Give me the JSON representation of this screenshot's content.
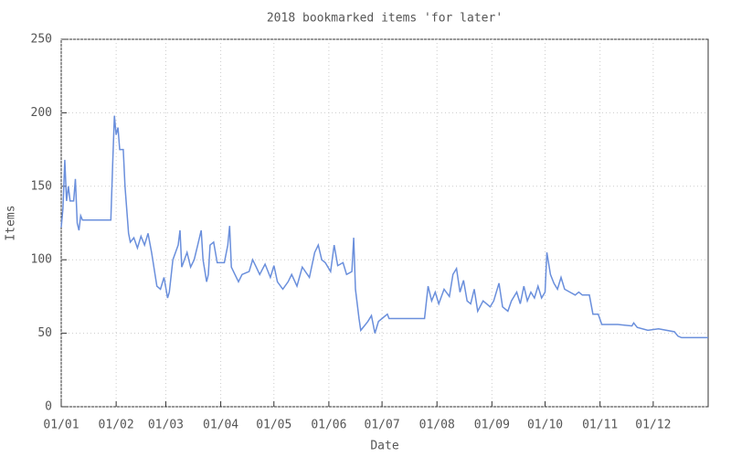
{
  "chart_data": {
    "type": "line",
    "title": "2018 bookmarked items 'for later'",
    "x_label": "Date",
    "y_label": "Items",
    "x": [
      0,
      1,
      2,
      3,
      4,
      5,
      7,
      8,
      9,
      10,
      11,
      12,
      28,
      29,
      30,
      31,
      32,
      33,
      35,
      36,
      38,
      39,
      41,
      43,
      45,
      47,
      49,
      51,
      54,
      56,
      58,
      60,
      61,
      63,
      66,
      67,
      68,
      71,
      73,
      75,
      77,
      79,
      80,
      82,
      83,
      84,
      86,
      88,
      92,
      94,
      95,
      96,
      98,
      100,
      102,
      106,
      108,
      110,
      112,
      115,
      118,
      120,
      122,
      125,
      128,
      130,
      133,
      136,
      140,
      143,
      145,
      147,
      149,
      152,
      154,
      156,
      159,
      161,
      164,
      165,
      166,
      168,
      169,
      171,
      173,
      175,
      177,
      179,
      181,
      184,
      185,
      205,
      207,
      209,
      211,
      213,
      216,
      219,
      221,
      223,
      225,
      227,
      229,
      231,
      233,
      235,
      238,
      242,
      244,
      247,
      249,
      252,
      254,
      257,
      259,
      261,
      263,
      265,
      267,
      269,
      271,
      273,
      274,
      276,
      278,
      280,
      282,
      284,
      287,
      290,
      292,
      294,
      298,
      300,
      303,
      305,
      314,
      322,
      323,
      325,
      331,
      337,
      346,
      348,
      350,
      365
    ],
    "series": [
      {
        "name": "Items",
        "color": "#6a8fdc",
        "values": [
          122,
          135,
          168,
          140,
          150,
          140,
          140,
          155,
          125,
          120,
          130,
          127,
          127,
          165,
          198,
          185,
          190,
          175,
          175,
          150,
          118,
          112,
          115,
          108,
          116,
          110,
          118,
          105,
          82,
          80,
          88,
          74,
          78,
          100,
          110,
          120,
          95,
          105,
          95,
          100,
          110,
          120,
          100,
          85,
          90,
          110,
          112,
          98,
          98,
          110,
          123,
          95,
          90,
          85,
          90,
          92,
          100,
          95,
          90,
          97,
          88,
          96,
          85,
          80,
          85,
          90,
          82,
          95,
          88,
          105,
          110,
          100,
          98,
          92,
          110,
          96,
          98,
          90,
          92,
          115,
          80,
          60,
          52,
          55,
          58,
          62,
          50,
          58,
          60,
          63,
          60,
          60,
          82,
          72,
          78,
          70,
          80,
          75,
          90,
          94,
          78,
          86,
          72,
          70,
          80,
          65,
          72,
          68,
          72,
          84,
          68,
          65,
          72,
          78,
          70,
          82,
          72,
          78,
          74,
          82,
          74,
          78,
          105,
          90,
          84,
          80,
          88,
          80,
          78,
          76,
          78,
          76,
          76,
          63,
          63,
          56,
          56,
          55,
          57,
          54,
          52,
          53,
          51,
          48,
          47,
          47
        ]
      }
    ],
    "xlim": [
      0,
      365
    ],
    "xticks": [
      {
        "value": 0,
        "label": "01/01"
      },
      {
        "value": 31,
        "label": "01/02"
      },
      {
        "value": 59,
        "label": "01/03"
      },
      {
        "value": 90,
        "label": "01/04"
      },
      {
        "value": 120,
        "label": "01/05"
      },
      {
        "value": 151,
        "label": "01/06"
      },
      {
        "value": 181,
        "label": "01/07"
      },
      {
        "value": 212,
        "label": "01/08"
      },
      {
        "value": 243,
        "label": "01/09"
      },
      {
        "value": 273,
        "label": "01/10"
      },
      {
        "value": 304,
        "label": "01/11"
      },
      {
        "value": 334,
        "label": "01/12"
      }
    ],
    "ylim": [
      0,
      250
    ],
    "yticks": [
      0,
      50,
      100,
      150,
      200,
      250
    ],
    "grid": true
  }
}
